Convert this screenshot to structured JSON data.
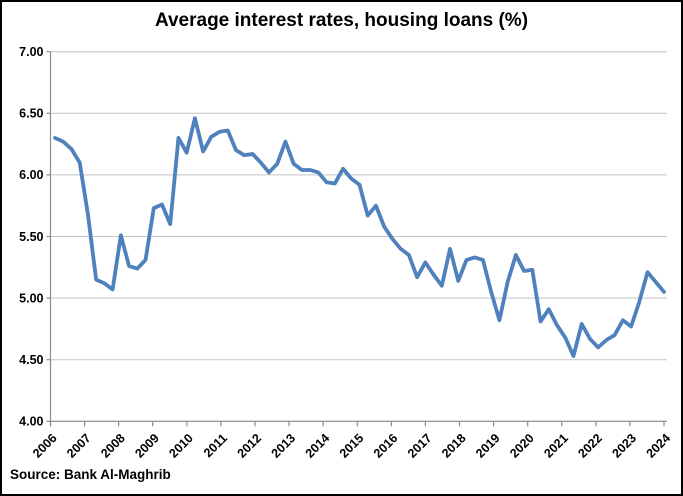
{
  "page": {
    "title": "Average interest rates, housing loans (%)",
    "source_note": "Source: Bank Al-Maghrib"
  },
  "chart_data": {
    "type": "line",
    "title": "Average interest rates, housing loans (%)",
    "xlabel": "",
    "ylabel": "",
    "ylim": [
      4.0,
      7.0
    ],
    "ytick_step": 0.5,
    "y_tick_labels": [
      "7.00",
      "6.50",
      "6.00",
      "5.50",
      "5.00",
      "4.50",
      "4.00"
    ],
    "x_tick_labels": [
      "2006",
      "2007",
      "2008",
      "2009",
      "2010",
      "2011",
      "2012",
      "2013",
      "2014",
      "2015",
      "2016",
      "2017",
      "2018",
      "2019",
      "2020",
      "2021",
      "2022",
      "2023",
      "2024"
    ],
    "points_per_year": 4,
    "grid": "horizontal",
    "legend": "none",
    "line_color": "#4F81BD",
    "gridline_color": "#C3C3C3",
    "axis_color": "#8C8C8C",
    "source": "Source: Bank Al-Maghrib",
    "series": [
      {
        "values": [
          6.3,
          6.27,
          6.21,
          6.1,
          5.68,
          5.15,
          5.12,
          5.07,
          5.51,
          5.26,
          5.24,
          5.31,
          5.73,
          5.76,
          5.6,
          6.3,
          6.18,
          6.46,
          6.19,
          6.31,
          6.35,
          6.36,
          6.2,
          6.16,
          6.17,
          6.1,
          6.02,
          6.09,
          6.27,
          6.09,
          6.04,
          6.04,
          6.02,
          5.94,
          5.93,
          6.05,
          5.97,
          5.92,
          5.67,
          5.75,
          5.58,
          5.48,
          5.4,
          5.35,
          5.17,
          5.29,
          5.19,
          5.1,
          5.4,
          5.14,
          5.31,
          5.33,
          5.31,
          5.05,
          4.82,
          5.13,
          5.35,
          5.22,
          5.23,
          4.81,
          4.91,
          4.78,
          4.68,
          4.53,
          4.79,
          4.67,
          4.6,
          4.66,
          4.7,
          4.82,
          4.77,
          4.97,
          5.21,
          5.13,
          5.05
        ]
      }
    ]
  }
}
